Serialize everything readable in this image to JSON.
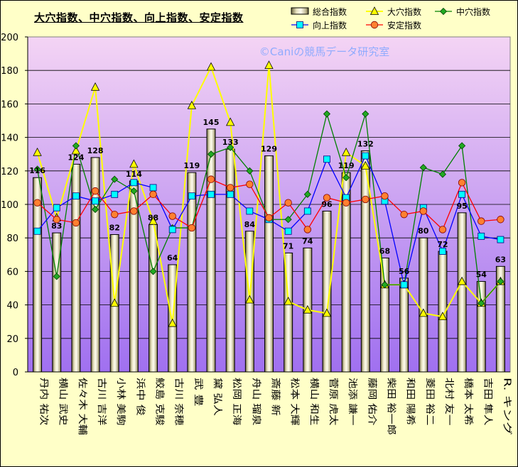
{
  "chart_data": {
    "type": "bar",
    "title": "大穴指数、中穴指数、向上指数、安定指数",
    "watermark": "©Caniの競馬データ研究室",
    "ylim": [
      0,
      200
    ],
    "yticks": [
      0,
      20,
      40,
      60,
      80,
      100,
      120,
      140,
      160,
      180,
      200
    ],
    "grid": true,
    "legend_position": "top-right",
    "colors": {
      "plot_top": "#f4d4f4",
      "plot_bottom": "#a070f0",
      "bar": "#cfc8a0",
      "large": "#ffff00",
      "medium": "#008000",
      "rising": "#0000ff",
      "stable": "#ff0000"
    },
    "categories": [
      "丹内 祐次",
      "横山 武史",
      "佐々木 大輔",
      "古川 吉洋",
      "小林 美駒",
      "浜中 俊",
      "鮫島 克駿",
      "古川 奈穂",
      "武 豊",
      "黛 弘人",
      "松岡 正海",
      "舟山 瑠泉",
      "斎藤 新",
      "松本 大輝",
      "横山 和生",
      "菅原 虎太",
      "池添 謙一",
      "藤岡 佑介",
      "柴田 裕一郎",
      "和田 陽希",
      "菱田 裕二",
      "北村 友一",
      "橋本 太希",
      "吉田 隼人",
      "R. キング"
    ],
    "series": [
      {
        "name": "総合指数",
        "type": "bar",
        "values": [
          116,
          83,
          124,
          128,
          82,
          114,
          88,
          64,
          119,
          145,
          133,
          84,
          129,
          71,
          74,
          96,
          119,
          132,
          68,
          56,
          80,
          72,
          95,
          54,
          63
        ]
      },
      {
        "name": "大穴指数",
        "type": "line",
        "marker": "triangle",
        "values": [
          131,
          92,
          132,
          170,
          41,
          124,
          90,
          29,
          159,
          182,
          149,
          43,
          183,
          42,
          37,
          35,
          131,
          123,
          52,
          52,
          35,
          33,
          54,
          41,
          54
        ]
      },
      {
        "name": "中穴指数",
        "type": "line",
        "marker": "diamond",
        "values": [
          121,
          57,
          135,
          97,
          115,
          108,
          60,
          86,
          86,
          130,
          134,
          120,
          91,
          91,
          106,
          154,
          116,
          154,
          52,
          52,
          122,
          118,
          135,
          41,
          54
        ]
      },
      {
        "name": "向上指数",
        "type": "line",
        "marker": "square",
        "values": [
          84,
          98,
          105,
          102,
          106,
          113,
          110,
          85,
          105,
          106,
          106,
          96,
          91,
          84,
          96,
          127,
          104,
          129,
          102,
          52,
          98,
          72,
          106,
          81,
          79
        ]
      },
      {
        "name": "安定指数",
        "type": "line",
        "marker": "circle",
        "values": [
          101,
          91,
          89,
          108,
          94,
          96,
          106,
          93,
          86,
          115,
          110,
          112,
          92,
          101,
          85,
          104,
          101,
          103,
          105,
          94,
          96,
          85,
          113,
          90,
          91
        ]
      }
    ]
  }
}
